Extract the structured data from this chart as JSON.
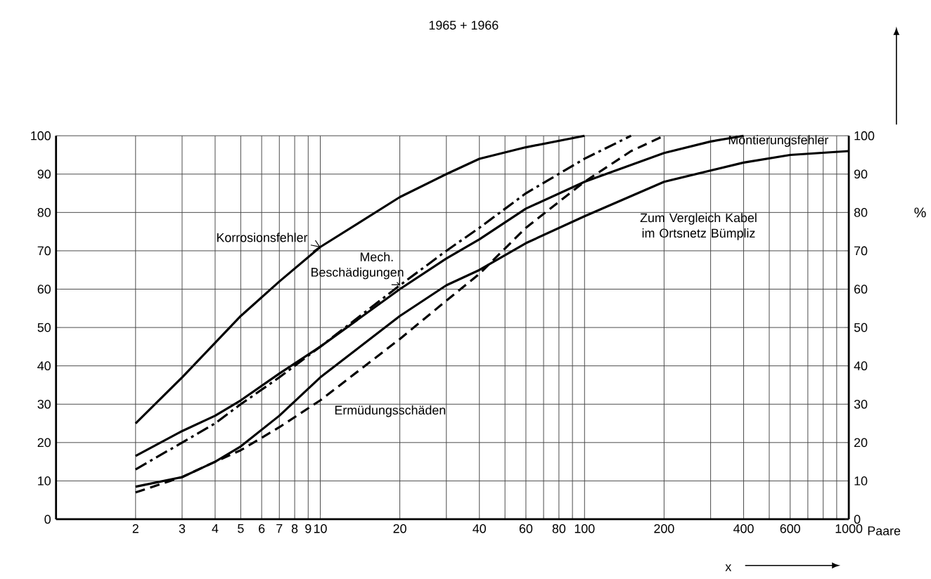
{
  "chart_data": {
    "type": "line",
    "title": "1965 + 1966",
    "xlabel": "x",
    "y2label": "%",
    "annotations": [
      "Paare"
    ],
    "log": "x",
    "grid": true,
    "xlim": [
      1,
      1000
    ],
    "xticks": [
      2,
      3,
      4,
      5,
      6,
      7,
      8,
      9,
      10,
      20,
      {
        "value": 30,
        "label": null
      },
      40,
      {
        "value": 50,
        "label": null
      },
      60,
      {
        "value": 70,
        "label": null
      },
      80,
      {
        "value": 90,
        "label": null
      },
      100,
      200,
      {
        "value": 300,
        "label": null
      },
      400,
      {
        "value": 500,
        "label": null
      },
      600,
      {
        "value": 700,
        "label": null
      },
      {
        "value": 800,
        "label": null
      },
      {
        "value": 900,
        "label": null
      },
      1000
    ],
    "ylim": [
      0,
      100
    ],
    "yticks": [
      0,
      10,
      20,
      30,
      40,
      50,
      60,
      70,
      80,
      90,
      100
    ],
    "y2lim": [
      0,
      100
    ],
    "y2ticks": [
      0,
      10,
      20,
      30,
      40,
      50,
      60,
      70,
      80,
      90,
      100
    ],
    "series": [
      {
        "name": "Korrosionsfehler",
        "color": "#000000",
        "line_style": "solid",
        "x": [
          2,
          3,
          4,
          5,
          7,
          10,
          20,
          30,
          40,
          60,
          100
        ],
        "values": [
          25,
          37,
          46,
          53,
          62,
          71,
          84,
          90,
          94,
          97,
          100
        ]
      },
      {
        "name": "Mech. Beschädigungen",
        "color": "#000000",
        "line_style": "dashdot",
        "x": [
          2,
          3,
          4,
          5,
          7,
          10,
          20,
          30,
          40,
          60,
          100,
          150
        ],
        "values": [
          13,
          20,
          25,
          30,
          37,
          45,
          61,
          70,
          76,
          85,
          94,
          100
        ]
      },
      {
        "name": "Montierungsfehler",
        "color": "#000000",
        "line_style": "solid",
        "x": [
          2,
          3,
          4,
          5,
          7,
          10,
          20,
          30,
          40,
          60,
          100,
          200,
          300,
          400
        ],
        "values": [
          16.5,
          23,
          27,
          31,
          38,
          45,
          60,
          68,
          73,
          81,
          88,
          95.5,
          98.5,
          100
        ]
      },
      {
        "name": "Ermüdungsschäden",
        "color": "#000000",
        "line_style": "dashed",
        "x": [
          2,
          3,
          4,
          5,
          7,
          10,
          20,
          30,
          40,
          60,
          100,
          150,
          200
        ],
        "values": [
          7,
          11,
          15,
          18,
          24,
          31,
          47,
          57,
          64,
          76,
          88,
          96,
          100
        ]
      },
      {
        "name": "Zum Vergleich Kabel im Ortsnetz Bümpliz",
        "color": "#000000",
        "line_style": "solid",
        "x": [
          2,
          3,
          4,
          5,
          7,
          10,
          20,
          30,
          40,
          60,
          100,
          200,
          400,
          600,
          1000
        ],
        "values": [
          8.5,
          11,
          15,
          19,
          27,
          37,
          53,
          61,
          65,
          72,
          79,
          88,
          93,
          95,
          96
        ]
      }
    ]
  }
}
